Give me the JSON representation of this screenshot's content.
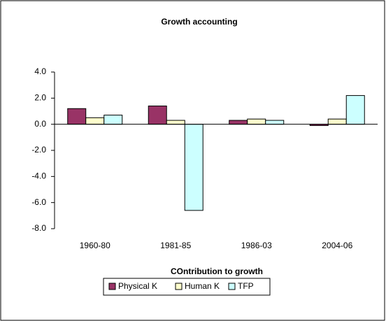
{
  "chart_data": {
    "type": "bar",
    "title": "Growth accounting",
    "x_label": "COntribution to growth",
    "categories": [
      "1960-80",
      "1981-85",
      "1986-03",
      "2004-06"
    ],
    "series": [
      {
        "name": "Physical K",
        "color": "#993366",
        "values": [
          1.2,
          1.4,
          0.3,
          -0.1
        ]
      },
      {
        "name": "Human K",
        "color": "#ffffcc",
        "values": [
          0.5,
          0.3,
          0.4,
          0.4
        ]
      },
      {
        "name": "TFP",
        "color": "#ccffff",
        "values": [
          0.7,
          -6.6,
          0.3,
          2.2
        ]
      }
    ],
    "ylim": [
      -8,
      4
    ],
    "yticks": [
      {
        "value": -8,
        "label": "-8.0"
      },
      {
        "value": -6,
        "label": "-6.0"
      },
      {
        "value": -4,
        "label": "-4.0"
      },
      {
        "value": -2,
        "label": "-2.0"
      },
      {
        "value": 0,
        "label": "0.0"
      },
      {
        "value": 2,
        "label": "2.0"
      },
      {
        "value": 4,
        "label": "4.0"
      }
    ],
    "grid": false,
    "legend": "bottom"
  }
}
